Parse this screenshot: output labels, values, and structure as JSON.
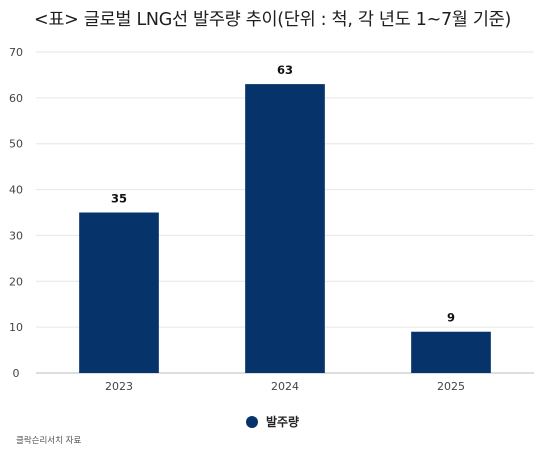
{
  "title": "<표> 글로벌 LNG선 발주량 추이(단위 : 척, 각 년도 1~7월 기준)",
  "source": "클락슨리서치 자료",
  "colors": {
    "bar": "#07336b",
    "grid": "#e6e6e6",
    "axis": "#bbbbbb",
    "tick_text": "#444444"
  },
  "chart_data": {
    "type": "bar",
    "title": "<표> 글로벌 LNG선 발주량 추이(단위 : 척, 각 년도 1~7월 기준)",
    "categories": [
      "2023",
      "2024",
      "2025"
    ],
    "series": [
      {
        "name": "발주량",
        "values": [
          35,
          63,
          9
        ]
      }
    ],
    "xlabel": "",
    "ylabel": "",
    "ylim": [
      0,
      70
    ],
    "yticks": [
      0,
      10,
      20,
      30,
      40,
      50,
      60,
      70
    ],
    "grid": true,
    "legend": "bottom",
    "data_labels": true
  }
}
